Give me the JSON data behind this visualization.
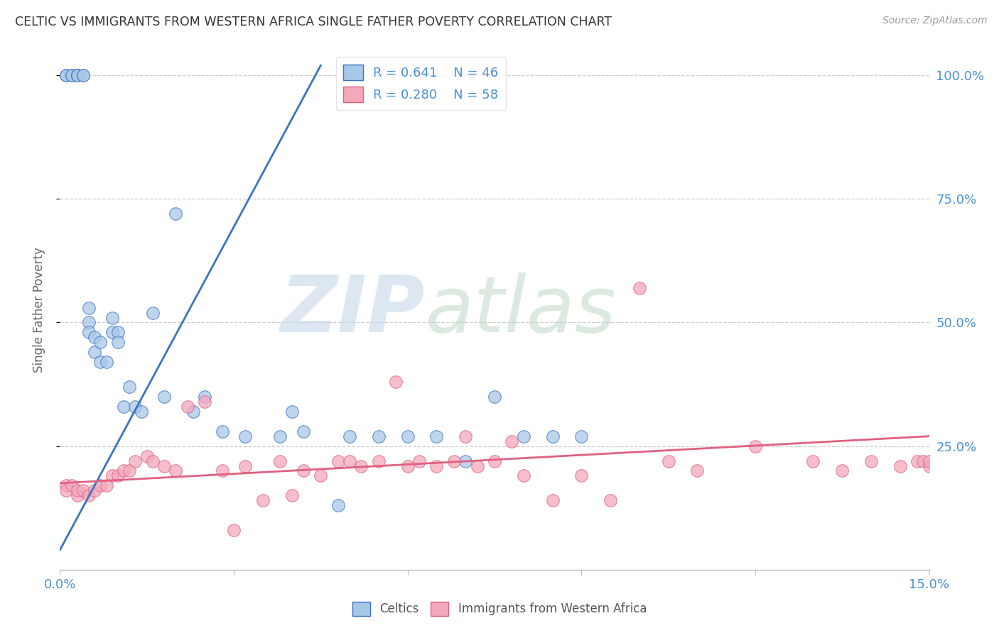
{
  "title": "CELTIC VS IMMIGRANTS FROM WESTERN AFRICA SINGLE FATHER POVERTY CORRELATION CHART",
  "source": "Source: ZipAtlas.com",
  "ylabel": "Single Father Poverty",
  "legend_label1": "Celtics",
  "legend_label2": "Immigrants from Western Africa",
  "R1": 0.641,
  "N1": 46,
  "R2": 0.28,
  "N2": 58,
  "color_blue": "#a8c8e8",
  "color_blue_line": "#3a72c4",
  "color_pink": "#f4a8bc",
  "color_pink_line": "#e06080",
  "color_blue_text": "#4a90d9",
  "blue_line_x0": 0.0,
  "blue_line_y0": 0.04,
  "blue_line_x1": 0.045,
  "blue_line_y1": 1.02,
  "pink_line_x0": 0.0,
  "pink_line_y0": 0.175,
  "pink_line_x1": 0.15,
  "pink_line_y1": 0.27,
  "xlim": [
    0.0,
    0.15
  ],
  "ylim": [
    0.0,
    1.05
  ],
  "background_color": "#ffffff",
  "grid_color": "#cccccc",
  "blue_x": [
    0.001,
    0.001,
    0.002,
    0.002,
    0.003,
    0.003,
    0.003,
    0.003,
    0.004,
    0.004,
    0.005,
    0.005,
    0.005,
    0.006,
    0.006,
    0.007,
    0.007,
    0.008,
    0.009,
    0.009,
    0.01,
    0.01,
    0.011,
    0.012,
    0.013,
    0.014,
    0.016,
    0.018,
    0.02,
    0.023,
    0.025,
    0.028,
    0.032,
    0.038,
    0.04,
    0.042,
    0.048,
    0.05,
    0.055,
    0.06,
    0.065,
    0.07,
    0.075,
    0.08,
    0.085,
    0.09
  ],
  "blue_y": [
    1.0,
    1.0,
    1.0,
    1.0,
    1.0,
    1.0,
    1.0,
    1.0,
    1.0,
    1.0,
    0.53,
    0.5,
    0.48,
    0.47,
    0.44,
    0.46,
    0.42,
    0.42,
    0.51,
    0.48,
    0.48,
    0.46,
    0.33,
    0.37,
    0.33,
    0.32,
    0.52,
    0.35,
    0.72,
    0.32,
    0.35,
    0.28,
    0.27,
    0.27,
    0.32,
    0.28,
    0.13,
    0.27,
    0.27,
    0.27,
    0.27,
    0.22,
    0.35,
    0.27,
    0.27,
    0.27
  ],
  "pink_x": [
    0.001,
    0.001,
    0.002,
    0.003,
    0.003,
    0.004,
    0.005,
    0.006,
    0.007,
    0.008,
    0.009,
    0.01,
    0.011,
    0.012,
    0.013,
    0.015,
    0.016,
    0.018,
    0.02,
    0.022,
    0.025,
    0.028,
    0.03,
    0.032,
    0.035,
    0.038,
    0.04,
    0.042,
    0.045,
    0.048,
    0.05,
    0.052,
    0.055,
    0.058,
    0.06,
    0.062,
    0.065,
    0.068,
    0.07,
    0.072,
    0.075,
    0.078,
    0.08,
    0.085,
    0.09,
    0.095,
    0.1,
    0.105,
    0.11,
    0.12,
    0.13,
    0.135,
    0.14,
    0.145,
    0.148,
    0.149,
    0.15,
    0.15
  ],
  "pink_y": [
    0.17,
    0.16,
    0.17,
    0.15,
    0.16,
    0.16,
    0.15,
    0.16,
    0.17,
    0.17,
    0.19,
    0.19,
    0.2,
    0.2,
    0.22,
    0.23,
    0.22,
    0.21,
    0.2,
    0.33,
    0.34,
    0.2,
    0.08,
    0.21,
    0.14,
    0.22,
    0.15,
    0.2,
    0.19,
    0.22,
    0.22,
    0.21,
    0.22,
    0.38,
    0.21,
    0.22,
    0.21,
    0.22,
    0.27,
    0.21,
    0.22,
    0.26,
    0.19,
    0.14,
    0.19,
    0.14,
    0.57,
    0.22,
    0.2,
    0.25,
    0.22,
    0.2,
    0.22,
    0.21,
    0.22,
    0.22,
    0.21,
    0.22
  ]
}
